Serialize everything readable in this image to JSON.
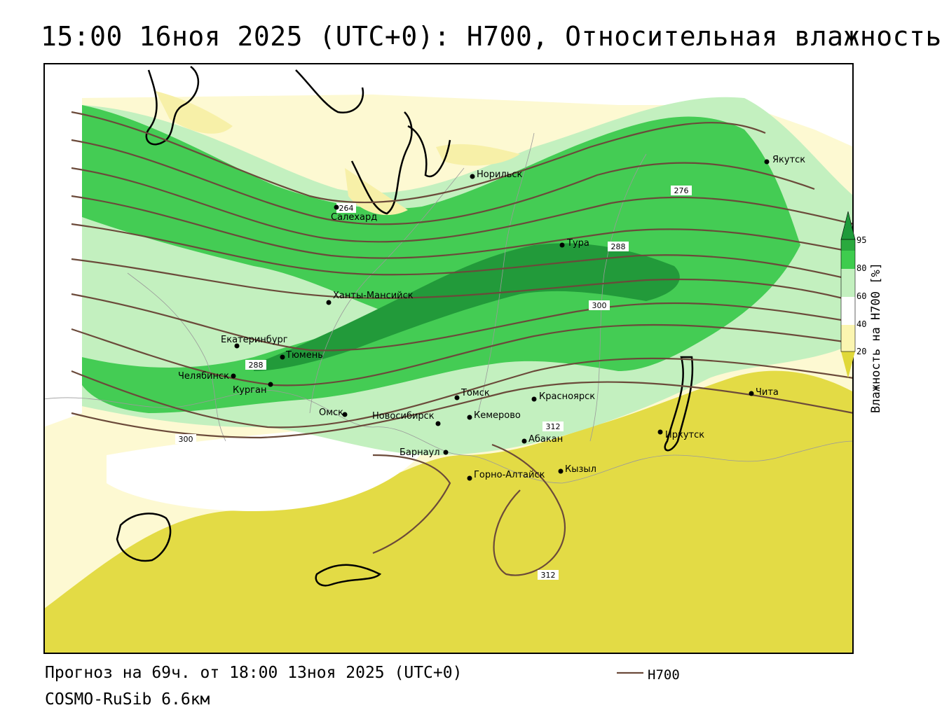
{
  "title": "15:00 16ноя 2025 (UTC+0): H700, Относительная влажность",
  "forecast_line": "Прогноз на 69ч. от 18:00 13ноя 2025 (UTC+0)",
  "model_line": "COSMO-RuSib 6.6км",
  "legend": {
    "line_label": "H700",
    "line_color": "#6b4a3a"
  },
  "colorbar": {
    "title": "Влажность на H700 [%]",
    "ticks": [
      "95",
      "80",
      "60",
      "40",
      "20"
    ],
    "colors": {
      "very_dry": "#e0d83a",
      "dry": "#fbf5b0",
      "neutral": "#ffffff",
      "moist": "#bff2bf",
      "wet": "#3ecc4e",
      "very_wet": "#1e9a3a"
    }
  },
  "cities": [
    {
      "name": "Якутск"
    },
    {
      "name": "Норильск"
    },
    {
      "name": "Салехард"
    },
    {
      "name": "Тура"
    },
    {
      "name": "Ханты-Мансийск"
    },
    {
      "name": "Екатеринбург"
    },
    {
      "name": "Тюмень"
    },
    {
      "name": "Челябинск"
    },
    {
      "name": "Курган"
    },
    {
      "name": "Омск"
    },
    {
      "name": "Томск"
    },
    {
      "name": "Красноярск"
    },
    {
      "name": "Новосибирск"
    },
    {
      "name": "Кемерово"
    },
    {
      "name": "Абакан"
    },
    {
      "name": "Барнаул"
    },
    {
      "name": "Горно-Алтайск"
    },
    {
      "name": "Кызыл"
    },
    {
      "name": "Иркутск"
    },
    {
      "name": "Чита"
    }
  ],
  "contour_labels": [
    "276",
    "288",
    "300",
    "312",
    "264",
    "288",
    "300",
    "312"
  ]
}
